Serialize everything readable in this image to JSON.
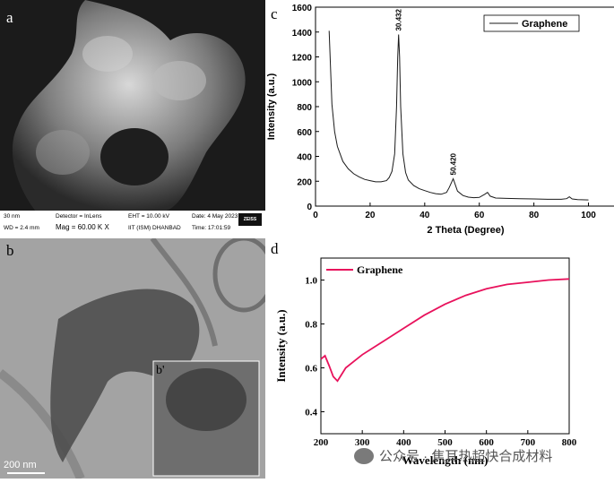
{
  "panels": {
    "a": {
      "letter": "a"
    },
    "b": {
      "letter": "b",
      "inset_letter": "b'",
      "scale": "200 nm"
    },
    "c": {
      "letter": "c"
    },
    "d": {
      "letter": "d"
    }
  },
  "sem_info": {
    "scale_value": "30 nm",
    "wd": "WD = 2.4 mm",
    "detector": "Detector = InLens",
    "mag": "Mag = 60.00 K X",
    "eht": "EHT = 10.00 kV",
    "institute": "IIT (ISM) DHANBAD",
    "date": "Date: 4 May 2023",
    "time": "Time: 17:01:59",
    "logo": "ZEISS"
  },
  "watermark": {
    "text": "公众号 · 焦耳热超快合成材料",
    "icon": "wechat-icon"
  },
  "colors": {
    "xrd_line": "#1a1a1a",
    "uv_line": "#e8125c"
  },
  "chart_data": [
    {
      "type": "line",
      "title": "",
      "xlabel": "2 Theta (Degree)",
      "ylabel": "Intensity (a.u.)",
      "xlim": [
        0,
        110
      ],
      "ylim": [
        0,
        1600
      ],
      "xticks": [
        0,
        20,
        40,
        60,
        80,
        100
      ],
      "yticks": [
        0,
        200,
        400,
        600,
        800,
        1000,
        1200,
        1400,
        1600
      ],
      "legend": "top-right",
      "series": [
        {
          "name": "Graphene",
          "x": [
            5,
            6,
            7,
            8,
            10,
            12,
            14,
            16,
            18,
            20,
            22,
            24,
            26,
            27,
            28,
            29,
            29.7,
            30.1,
            30.432,
            30.8,
            31.2,
            32,
            33,
            34,
            36,
            38,
            40,
            42,
            44,
            46,
            48,
            49,
            50,
            50.42,
            51,
            52,
            54,
            56,
            58,
            60,
            62,
            63,
            64,
            66,
            70,
            75,
            80,
            85,
            90,
            92,
            93,
            94,
            96,
            100
          ],
          "y": [
            1410,
            820,
            600,
            480,
            360,
            300,
            260,
            235,
            215,
            205,
            195,
            195,
            205,
            230,
            280,
            420,
            800,
            1200,
            1380,
            1200,
            800,
            420,
            270,
            210,
            165,
            140,
            125,
            110,
            100,
            95,
            110,
            150,
            200,
            220,
            185,
            120,
            85,
            72,
            68,
            70,
            95,
            110,
            80,
            65,
            62,
            60,
            58,
            55,
            55,
            60,
            75,
            58,
            52,
            50
          ]
        }
      ],
      "annotations": [
        {
          "text": "30.432",
          "x": 30.432,
          "y": 1380
        },
        {
          "text": "50.420",
          "x": 50.42,
          "y": 220
        }
      ]
    },
    {
      "type": "line",
      "title": "",
      "xlabel": "Wavelength (nm)",
      "ylabel": "Intensity (a.u.)",
      "xlim": [
        200,
        800
      ],
      "ylim": [
        0.3,
        1.1
      ],
      "xticks": [
        200,
        300,
        400,
        500,
        600,
        700,
        800
      ],
      "yticks": [
        0.4,
        0.6,
        0.8,
        1.0
      ],
      "legend": "top-left",
      "series": [
        {
          "name": "Graphene",
          "x": [
            200,
            210,
            220,
            230,
            240,
            250,
            260,
            280,
            300,
            350,
            400,
            450,
            500,
            550,
            600,
            650,
            700,
            750,
            800
          ],
          "y": [
            0.64,
            0.655,
            0.61,
            0.56,
            0.54,
            0.57,
            0.6,
            0.63,
            0.66,
            0.72,
            0.78,
            0.84,
            0.89,
            0.93,
            0.96,
            0.98,
            0.99,
            1.0,
            1.005
          ]
        }
      ]
    }
  ]
}
